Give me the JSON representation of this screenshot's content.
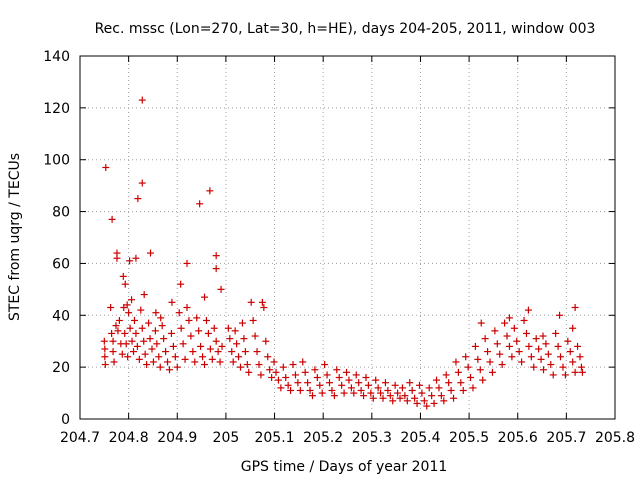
{
  "chart_data": {
    "type": "scatter",
    "title": "Rec. mssc (Lon=270, Lat=30, h=HE), days 204-205, 2011, window 003",
    "xlabel": "GPS time / Days of year 2011",
    "ylabel": "STEC from uqrg / TECUs",
    "xlim": [
      204.7,
      205.8
    ],
    "ylim": [
      0,
      140
    ],
    "xticks": [
      "204.7",
      "204.8",
      "204.9",
      "205",
      "205.1",
      "205.2",
      "205.3",
      "205.4",
      "205.5",
      "205.6",
      "205.7",
      "205.8"
    ],
    "yticks": [
      "0",
      "20",
      "40",
      "60",
      "80",
      "100",
      "120",
      "140"
    ],
    "grid": true,
    "legend": "none",
    "marker": "+",
    "color": "#cc0000",
    "points": [
      [
        204.753,
        97
      ],
      [
        204.766,
        77
      ],
      [
        204.776,
        64
      ],
      [
        204.776,
        62
      ],
      [
        204.789,
        55
      ],
      [
        204.793,
        52
      ],
      [
        204.797,
        44
      ],
      [
        204.802,
        61
      ],
      [
        204.806,
        46
      ],
      [
        204.815,
        62
      ],
      [
        204.819,
        85
      ],
      [
        204.828,
        123
      ],
      [
        204.828,
        91
      ],
      [
        204.832,
        48
      ],
      [
        204.845,
        64
      ],
      [
        204.856,
        41
      ],
      [
        204.866,
        39
      ],
      [
        204.889,
        45
      ],
      [
        204.907,
        52
      ],
      [
        204.92,
        60
      ],
      [
        204.946,
        83
      ],
      [
        204.956,
        47
      ],
      [
        204.967,
        88
      ],
      [
        204.98,
        63
      ],
      [
        204.98,
        58
      ],
      [
        204.99,
        50
      ],
      [
        204.75,
        30
      ],
      [
        204.751,
        27
      ],
      [
        204.751,
        24
      ],
      [
        204.752,
        21
      ],
      [
        204.763,
        43
      ],
      [
        204.765,
        33
      ],
      [
        204.768,
        30
      ],
      [
        204.768,
        26
      ],
      [
        204.77,
        22
      ],
      [
        204.774,
        36
      ],
      [
        204.778,
        34
      ],
      [
        204.781,
        38
      ],
      [
        204.784,
        29
      ],
      [
        204.787,
        25
      ],
      [
        204.79,
        43
      ],
      [
        204.792,
        33
      ],
      [
        204.795,
        29
      ],
      [
        204.798,
        24
      ],
      [
        204.8,
        41
      ],
      [
        204.803,
        35
      ],
      [
        204.807,
        30
      ],
      [
        204.81,
        26
      ],
      [
        204.812,
        38
      ],
      [
        204.815,
        33
      ],
      [
        204.818,
        28
      ],
      [
        204.822,
        23
      ],
      [
        204.825,
        42
      ],
      [
        204.828,
        35
      ],
      [
        204.831,
        30
      ],
      [
        204.834,
        25
      ],
      [
        204.837,
        21
      ],
      [
        204.841,
        37
      ],
      [
        204.844,
        31
      ],
      [
        204.848,
        27
      ],
      [
        204.851,
        22
      ],
      [
        204.855,
        34
      ],
      [
        204.858,
        29
      ],
      [
        204.862,
        24
      ],
      [
        204.865,
        20
      ],
      [
        204.869,
        36
      ],
      [
        204.872,
        31
      ],
      [
        204.876,
        26
      ],
      [
        204.88,
        22
      ],
      [
        204.884,
        19
      ],
      [
        204.888,
        33
      ],
      [
        204.892,
        28
      ],
      [
        204.896,
        24
      ],
      [
        204.9,
        20
      ],
      [
        204.904,
        41
      ],
      [
        204.908,
        35
      ],
      [
        204.912,
        29
      ],
      [
        204.916,
        23
      ],
      [
        204.92,
        43
      ],
      [
        204.924,
        38
      ],
      [
        204.928,
        32
      ],
      [
        204.932,
        26
      ],
      [
        204.936,
        22
      ],
      [
        204.94,
        39
      ],
      [
        204.944,
        34
      ],
      [
        204.948,
        28
      ],
      [
        204.952,
        24
      ],
      [
        204.956,
        21
      ],
      [
        204.96,
        38
      ],
      [
        204.964,
        33
      ],
      [
        204.968,
        27
      ],
      [
        204.972,
        23
      ],
      [
        204.976,
        35
      ],
      [
        204.98,
        30
      ],
      [
        204.984,
        26
      ],
      [
        204.988,
        22
      ],
      [
        204.992,
        28
      ],
      [
        205.005,
        35
      ],
      [
        205.008,
        31
      ],
      [
        205.012,
        26
      ],
      [
        205.015,
        22
      ],
      [
        205.019,
        34
      ],
      [
        205.022,
        29
      ],
      [
        205.026,
        24
      ],
      [
        205.03,
        20
      ],
      [
        205.034,
        37
      ],
      [
        205.037,
        31
      ],
      [
        205.04,
        26
      ],
      [
        205.044,
        21
      ],
      [
        205.047,
        18
      ],
      [
        205.052,
        45
      ],
      [
        205.056,
        38
      ],
      [
        205.06,
        32
      ],
      [
        205.064,
        26
      ],
      [
        205.068,
        21
      ],
      [
        205.072,
        17
      ],
      [
        205.075,
        45
      ],
      [
        205.078,
        43
      ],
      [
        205.082,
        30
      ],
      [
        205.086,
        24
      ],
      [
        205.09,
        19
      ],
      [
        205.094,
        16
      ],
      [
        205.099,
        22
      ],
      [
        205.103,
        18
      ],
      [
        205.108,
        15
      ],
      [
        205.113,
        12
      ],
      [
        205.118,
        20
      ],
      [
        205.123,
        16
      ],
      [
        205.128,
        13
      ],
      [
        205.133,
        11
      ],
      [
        205.138,
        21
      ],
      [
        205.143,
        17
      ],
      [
        205.148,
        14
      ],
      [
        205.153,
        11
      ],
      [
        205.158,
        22
      ],
      [
        205.163,
        18
      ],
      [
        205.168,
        14
      ],
      [
        205.173,
        11
      ],
      [
        205.178,
        9
      ],
      [
        205.183,
        19
      ],
      [
        205.188,
        16
      ],
      [
        205.193,
        13
      ],
      [
        205.198,
        10
      ],
      [
        205.203,
        21
      ],
      [
        205.208,
        17
      ],
      [
        205.213,
        14
      ],
      [
        205.218,
        11
      ],
      [
        205.223,
        9
      ],
      [
        205.228,
        19
      ],
      [
        205.233,
        16
      ],
      [
        205.238,
        13
      ],
      [
        205.243,
        10
      ],
      [
        205.248,
        18
      ],
      [
        205.253,
        15
      ],
      [
        205.258,
        12
      ],
      [
        205.263,
        10
      ],
      [
        205.268,
        17
      ],
      [
        205.273,
        14
      ],
      [
        205.278,
        11
      ],
      [
        205.283,
        9
      ],
      [
        205.288,
        16
      ],
      [
        205.293,
        13
      ],
      [
        205.298,
        10
      ],
      [
        205.303,
        8
      ],
      [
        205.308,
        15
      ],
      [
        205.313,
        12
      ],
      [
        205.318,
        10
      ],
      [
        205.323,
        8
      ],
      [
        205.328,
        14
      ],
      [
        205.333,
        11
      ],
      [
        205.338,
        9
      ],
      [
        205.343,
        7
      ],
      [
        205.348,
        13
      ],
      [
        205.353,
        10
      ],
      [
        205.358,
        8
      ],
      [
        205.363,
        12
      ],
      [
        205.368,
        9
      ],
      [
        205.373,
        7
      ],
      [
        205.378,
        14
      ],
      [
        205.383,
        11
      ],
      [
        205.388,
        8
      ],
      [
        205.393,
        6
      ],
      [
        205.398,
        13
      ],
      [
        205.403,
        10
      ],
      [
        205.408,
        7
      ],
      [
        205.413,
        5
      ],
      [
        205.418,
        12
      ],
      [
        205.423,
        9
      ],
      [
        205.428,
        6
      ],
      [
        205.433,
        15
      ],
      [
        205.438,
        12
      ],
      [
        205.443,
        9
      ],
      [
        205.448,
        7
      ],
      [
        205.453,
        17
      ],
      [
        205.458,
        14
      ],
      [
        205.463,
        11
      ],
      [
        205.468,
        8
      ],
      [
        205.473,
        22
      ],
      [
        205.478,
        18
      ],
      [
        205.483,
        14
      ],
      [
        205.488,
        11
      ],
      [
        205.493,
        24
      ],
      [
        205.498,
        20
      ],
      [
        205.503,
        16
      ],
      [
        205.508,
        12
      ],
      [
        205.513,
        28
      ],
      [
        205.518,
        23
      ],
      [
        205.523,
        19
      ],
      [
        205.528,
        15
      ],
      [
        205.533,
        31
      ],
      [
        205.538,
        26
      ],
      [
        205.543,
        22
      ],
      [
        205.548,
        18
      ],
      [
        205.553,
        34
      ],
      [
        205.558,
        29
      ],
      [
        205.563,
        25
      ],
      [
        205.568,
        21
      ],
      [
        205.573,
        37
      ],
      [
        205.578,
        32
      ],
      [
        205.583,
        28
      ],
      [
        205.588,
        24
      ],
      [
        205.593,
        35
      ],
      [
        205.598,
        30
      ],
      [
        205.603,
        26
      ],
      [
        205.608,
        22
      ],
      [
        205.613,
        38
      ],
      [
        205.618,
        33
      ],
      [
        205.623,
        28
      ],
      [
        205.628,
        24
      ],
      [
        205.633,
        20
      ],
      [
        205.638,
        31
      ],
      [
        205.643,
        27
      ],
      [
        205.648,
        23
      ],
      [
        205.653,
        19
      ],
      [
        205.658,
        29
      ],
      [
        205.663,
        25
      ],
      [
        205.668,
        21
      ],
      [
        205.673,
        17
      ],
      [
        205.678,
        33
      ],
      [
        205.683,
        28
      ],
      [
        205.688,
        24
      ],
      [
        205.693,
        20
      ],
      [
        205.698,
        17
      ],
      [
        205.703,
        30
      ],
      [
        205.708,
        26
      ],
      [
        205.713,
        22
      ],
      [
        205.718,
        18
      ],
      [
        205.723,
        28
      ],
      [
        205.728,
        24
      ],
      [
        205.731,
        20
      ],
      [
        205.733,
        18
      ],
      [
        205.525,
        37
      ],
      [
        205.583,
        39
      ],
      [
        205.622,
        42
      ],
      [
        205.652,
        32
      ],
      [
        205.686,
        40
      ],
      [
        205.713,
        35
      ],
      [
        205.718,
        43
      ]
    ]
  }
}
